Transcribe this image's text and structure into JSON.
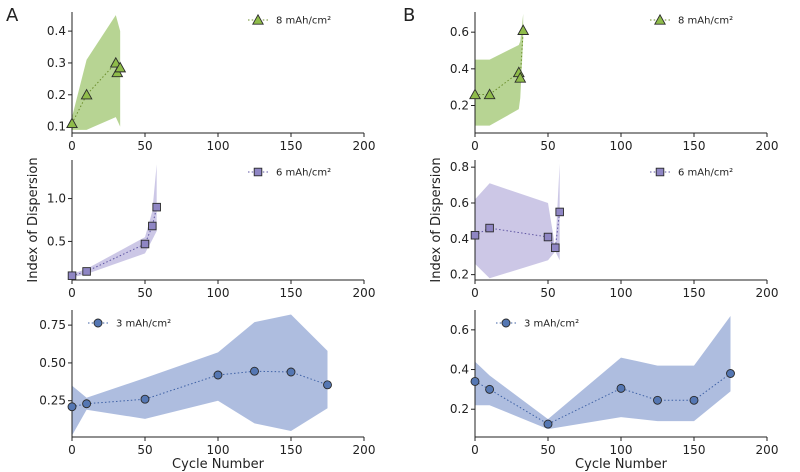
{
  "figure": {
    "panel_letters": [
      "A",
      "B"
    ],
    "shared_ylabel": "Index of Dispersion",
    "shared_xlabel": "Cycle Number"
  },
  "colors": {
    "green_fill": "#9bc46a",
    "green_marker": "#8fbc4a",
    "green_line": "#6b8e2b",
    "purple_fill": "#b9b2dc",
    "purple_marker": "#8f86c4",
    "purple_line": "#5f56a3",
    "blue_fill": "#8fa3d2",
    "blue_marker": "#5577b3",
    "blue_line": "#3f62a6",
    "marker_edge": "#2a2a2a"
  },
  "chart_data": [
    {
      "id": "A-top",
      "type": "line",
      "marker": "triangle",
      "color_key": "green",
      "series": [
        {
          "name": "8 mAh/cm²",
          "x": [
            0,
            10,
            30,
            31,
            33
          ],
          "y": [
            0.11,
            0.2,
            0.3,
            0.27,
            0.285
          ]
        }
      ],
      "band": {
        "x": [
          0,
          10,
          30,
          33
        ],
        "upper": [
          0.13,
          0.31,
          0.45,
          0.4
        ],
        "lower": [
          0.09,
          0.09,
          0.13,
          0.1
        ]
      },
      "xlim": [
        0,
        200
      ],
      "ylim": [
        0.08,
        0.46
      ],
      "xticks": [
        0,
        50,
        100,
        150,
        200
      ],
      "yticks": [
        0.1,
        0.2,
        0.3,
        0.4
      ],
      "ytick_labels": [
        "0.1",
        "0.2",
        "0.3",
        "0.4"
      ],
      "xlabel": "",
      "ylabel": ""
    },
    {
      "id": "A-mid",
      "type": "line",
      "marker": "square",
      "color_key": "purple",
      "series": [
        {
          "name": "6 mAh/cm²",
          "x": [
            0,
            10,
            50,
            55,
            58
          ],
          "y": [
            0.1,
            0.15,
            0.47,
            0.68,
            0.9
          ]
        }
      ],
      "band": {
        "x": [
          0,
          10,
          50,
          55,
          58
        ],
        "upper": [
          0.12,
          0.18,
          0.55,
          0.85,
          1.4
        ],
        "lower": [
          0.08,
          0.12,
          0.36,
          0.52,
          0.62
        ]
      },
      "xlim": [
        0,
        200
      ],
      "ylim": [
        0.05,
        1.45
      ],
      "xticks": [
        0,
        50,
        100,
        150,
        200
      ],
      "yticks": [
        0.5,
        1.0
      ],
      "ytick_labels": [
        "0.5",
        "1.0"
      ],
      "xlabel": "",
      "ylabel": ""
    },
    {
      "id": "A-bot",
      "type": "line",
      "marker": "circle",
      "color_key": "blue",
      "series": [
        {
          "name": "3 mAh/cm²",
          "x": [
            0,
            10,
            50,
            100,
            125,
            150,
            175
          ],
          "y": [
            0.21,
            0.23,
            0.26,
            0.42,
            0.445,
            0.44,
            0.355
          ]
        }
      ],
      "band": {
        "x": [
          0,
          10,
          50,
          100,
          125,
          150,
          175
        ],
        "upper": [
          0.35,
          0.27,
          0.4,
          0.57,
          0.77,
          0.82,
          0.58
        ],
        "lower": [
          0.02,
          0.19,
          0.13,
          0.25,
          0.1,
          0.05,
          0.2
        ]
      },
      "xlim": [
        0,
        200
      ],
      "ylim": [
        0.01,
        0.85
      ],
      "xticks": [
        0,
        50,
        100,
        150,
        200
      ],
      "yticks": [
        0.25,
        0.5,
        0.75
      ],
      "ytick_labels": [
        "0.25",
        "0.50",
        "0.75"
      ],
      "xlabel": "Cycle Number",
      "ylabel": ""
    },
    {
      "id": "B-top",
      "type": "line",
      "marker": "triangle",
      "color_key": "green",
      "series": [
        {
          "name": "8 mAh/cm²",
          "x": [
            0,
            10,
            30,
            31,
            33
          ],
          "y": [
            0.26,
            0.26,
            0.38,
            0.35,
            0.61
          ]
        }
      ],
      "band": {
        "x": [
          0,
          10,
          30,
          31,
          33
        ],
        "upper": [
          0.45,
          0.45,
          0.53,
          0.55,
          0.7
        ],
        "lower": [
          0.09,
          0.09,
          0.18,
          0.24,
          0.56
        ]
      },
      "xlim": [
        0,
        200
      ],
      "ylim": [
        0.05,
        0.71
      ],
      "xticks": [
        0,
        50,
        100,
        150,
        200
      ],
      "yticks": [
        0.2,
        0.4,
        0.6
      ],
      "ytick_labels": [
        "0.2",
        "0.4",
        "0.6"
      ],
      "xlabel": "",
      "ylabel": ""
    },
    {
      "id": "B-mid",
      "type": "line",
      "marker": "square",
      "color_key": "purple",
      "series": [
        {
          "name": "6 mAh/cm²",
          "x": [
            0,
            10,
            50,
            55,
            58
          ],
          "y": [
            0.42,
            0.46,
            0.41,
            0.35,
            0.55
          ]
        }
      ],
      "band": {
        "x": [
          0,
          10,
          50,
          55,
          58
        ],
        "upper": [
          0.62,
          0.71,
          0.6,
          0.35,
          0.82
        ],
        "lower": [
          0.26,
          0.18,
          0.28,
          0.33,
          0.28
        ]
      },
      "xlim": [
        0,
        200
      ],
      "ylim": [
        0.17,
        0.84
      ],
      "xticks": [
        0,
        50,
        100,
        150,
        200
      ],
      "yticks": [
        0.2,
        0.4,
        0.6,
        0.8
      ],
      "ytick_labels": [
        "0.2",
        "0.4",
        "0.6",
        "0.8"
      ],
      "xlabel": "",
      "ylabel": ""
    },
    {
      "id": "B-bot",
      "type": "line",
      "marker": "circle",
      "color_key": "blue",
      "series": [
        {
          "name": "3 mAh/cm²",
          "x": [
            0,
            10,
            50,
            100,
            125,
            150,
            175
          ],
          "y": [
            0.34,
            0.3,
            0.125,
            0.305,
            0.245,
            0.245,
            0.38
          ]
        }
      ],
      "band": {
        "x": [
          0,
          10,
          50,
          100,
          125,
          150,
          175
        ],
        "upper": [
          0.44,
          0.37,
          0.15,
          0.46,
          0.42,
          0.42,
          0.67
        ],
        "lower": [
          0.22,
          0.22,
          0.1,
          0.16,
          0.14,
          0.14,
          0.29
        ]
      },
      "xlim": [
        0,
        200
      ],
      "ylim": [
        0.06,
        0.7
      ],
      "xticks": [
        0,
        50,
        100,
        150,
        200
      ],
      "yticks": [
        0.2,
        0.4,
        0.6
      ],
      "ytick_labels": [
        "0.2",
        "0.4",
        "0.6"
      ],
      "xlabel": "Cycle Number",
      "ylabel": ""
    }
  ]
}
